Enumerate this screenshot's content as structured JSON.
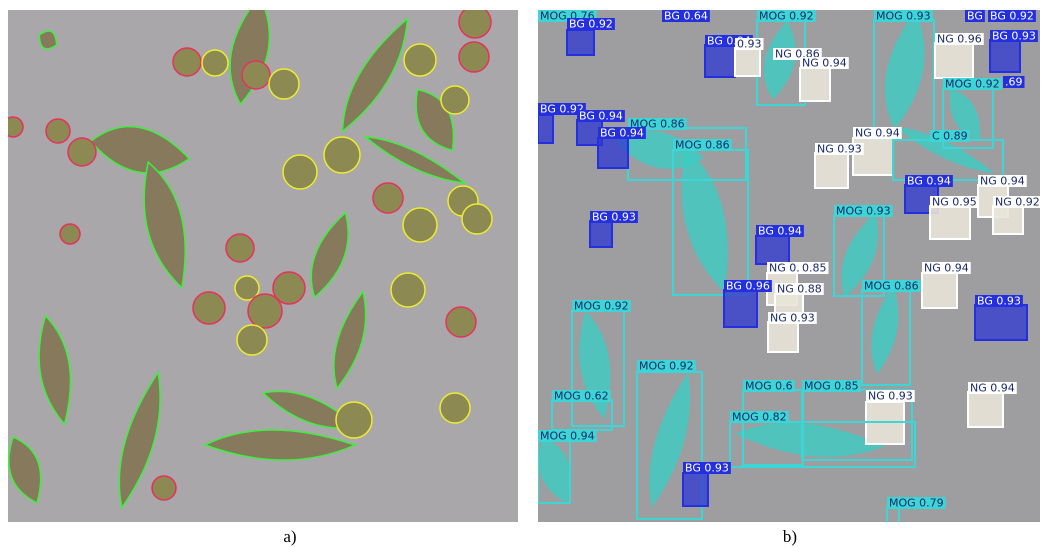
{
  "panel_a": {
    "caption": "a)"
  },
  "panel_b": {
    "caption": "b)",
    "detections": [
      {
        "label": "MOG 0.76"
      },
      {
        "label": "BG 0.92"
      },
      {
        "label": "BG 0.64"
      },
      {
        "label": "MOG 0.92"
      },
      {
        "label": "MOG 0.93"
      },
      {
        "label": "BG"
      },
      {
        "label": "BG 0.92"
      },
      {
        "label": "BG 0.93"
      },
      {
        "label": "BG 0.94"
      },
      {
        "label": "0.93"
      },
      {
        "label": "NG 0.86"
      },
      {
        "label": "NG 0.94"
      },
      {
        "label": "NG 0.96"
      },
      {
        "label": "MOG 0.92"
      },
      {
        "label": ".69"
      },
      {
        "label": "BG 0.92"
      },
      {
        "label": "BG 0.94"
      },
      {
        "label": "MOG 0.86"
      },
      {
        "label": "BG 0.94"
      },
      {
        "label": "MOG 0.86"
      },
      {
        "label": "NG 0.94"
      },
      {
        "label": "C 0.89"
      },
      {
        "label": "NG 0.93"
      },
      {
        "label": "BG 0.94"
      },
      {
        "label": "NG 0.94"
      },
      {
        "label": "NG 0.95"
      },
      {
        "label": "NG 0.92"
      },
      {
        "label": "BG 0.93"
      },
      {
        "label": "MOG 0.93"
      },
      {
        "label": "BG 0.94"
      },
      {
        "label": "NG 0.93"
      },
      {
        "label": "0.85"
      },
      {
        "label": "NG 0.94"
      },
      {
        "label": "BG 0.96"
      },
      {
        "label": "NG 0.88"
      },
      {
        "label": "MOG 0.86"
      },
      {
        "label": "BG 0.93"
      },
      {
        "label": "MOG 0.92"
      },
      {
        "label": "NG 0.93"
      },
      {
        "label": "MOG 0.92"
      },
      {
        "label": "MOG 0.62"
      },
      {
        "label": "MOG 0.6"
      },
      {
        "label": "MOG 0.85"
      },
      {
        "label": "NG 0.93"
      },
      {
        "label": "NG 0.94"
      },
      {
        "label": "MOG 0.82"
      },
      {
        "label": "MOG 0.94"
      },
      {
        "label": "BG 0.93"
      },
      {
        "label": "MOG 0.79"
      }
    ]
  }
}
